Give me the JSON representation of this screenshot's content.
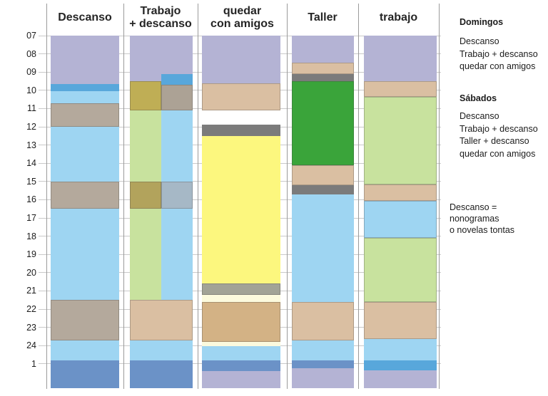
{
  "chart_data": {
    "type": "stacked-time-blocks-schedule",
    "title": "",
    "ylabel": "hour of day",
    "axis": {
      "tick_labels": [
        "07",
        "08",
        "09",
        "10",
        "11",
        "12",
        "13",
        "14",
        "15",
        "16",
        "17",
        "18",
        "19",
        "20",
        "21",
        "22",
        "23",
        "24",
        "1"
      ],
      "tick_hours": [
        7,
        8,
        9,
        10,
        11,
        12,
        13,
        14,
        15,
        16,
        17,
        18,
        19,
        20,
        21,
        22,
        23,
        24,
        25
      ],
      "grid": true
    },
    "palette": {
      "lavender": "#b4b3d4",
      "lightblue": "#9ed5f2",
      "medblue": "#58a7db",
      "darkblue": "#6b92c7",
      "greybrown": "#b4a99c",
      "greybrown2": "#aca295",
      "khaki": "#bfae55",
      "olive": "#b2a35c",
      "greyblue": "#a6b8c6",
      "green": "#c8e29e",
      "brightgreen": "#3aa43a",
      "tan": "#dabfa2",
      "darktan": "#d3b285",
      "yellow": "#fcf77e",
      "paleyellow": "#fcfadd",
      "grey": "#7b7b7b",
      "greygreen": "#a2a396"
    },
    "columns": [
      {
        "title": "Descanso",
        "blocks": [
          {
            "s": 7,
            "e": 9.65,
            "c": "lavender"
          },
          {
            "s": 9.65,
            "e": 10.05,
            "c": "medblue"
          },
          {
            "s": 10.05,
            "e": 10.7,
            "c": "lightblue"
          },
          {
            "s": 10.7,
            "e": 12,
            "c": "greybrown",
            "b": 1
          },
          {
            "s": 12,
            "e": 15,
            "c": "lightblue"
          },
          {
            "s": 15,
            "e": 16.5,
            "c": "greybrown",
            "b": 1
          },
          {
            "s": 16.5,
            "e": 21.5,
            "c": "lightblue"
          },
          {
            "s": 21.5,
            "e": 23.7,
            "c": "greybrown",
            "b": 1
          },
          {
            "s": 23.7,
            "e": 24.8,
            "c": "lightblue"
          },
          {
            "s": 24.8,
            "e": 26.35,
            "c": "darkblue"
          }
        ]
      },
      {
        "title": "Trabajo\n+ descanso",
        "blocks": [
          {
            "lane": "left",
            "s": 7,
            "e": 9.5,
            "c": "lavender"
          },
          {
            "lane": "left",
            "s": 9.5,
            "e": 11.1,
            "c": "khaki",
            "b": 1
          },
          {
            "lane": "left",
            "s": 11.1,
            "e": 15,
            "c": "green"
          },
          {
            "lane": "left",
            "s": 15,
            "e": 16.5,
            "c": "olive",
            "b": 1
          },
          {
            "lane": "left",
            "s": 16.5,
            "e": 21.5,
            "c": "green"
          },
          {
            "lane": "right",
            "s": 7,
            "e": 9.1,
            "c": "lavender"
          },
          {
            "lane": "right",
            "s": 9.1,
            "e": 9.7,
            "c": "medblue"
          },
          {
            "lane": "right",
            "s": 9.7,
            "e": 11.1,
            "c": "greybrown2",
            "b": 1
          },
          {
            "lane": "right",
            "s": 11.1,
            "e": 15,
            "c": "lightblue"
          },
          {
            "lane": "right",
            "s": 15,
            "e": 16.5,
            "c": "greyblue",
            "b": 1
          },
          {
            "lane": "right",
            "s": 16.5,
            "e": 21.5,
            "c": "lightblue"
          },
          {
            "s": 21.5,
            "e": 23.7,
            "c": "tan",
            "b": 1
          },
          {
            "s": 23.7,
            "e": 24.8,
            "c": "lightblue"
          },
          {
            "s": 24.8,
            "e": 26.35,
            "c": "darkblue"
          }
        ]
      },
      {
        "title": "quedar\ncon amigos",
        "blocks": [
          {
            "s": 7,
            "e": 9.6,
            "c": "lavender"
          },
          {
            "s": 9.6,
            "e": 11.1,
            "c": "tan",
            "b": 1
          },
          {
            "s": 11.9,
            "e": 12.5,
            "c": "grey"
          },
          {
            "s": 12.5,
            "e": 20.6,
            "c": "yellow"
          },
          {
            "s": 20.6,
            "e": 21.2,
            "c": "greygreen",
            "b": 1
          },
          {
            "s": 21.2,
            "e": 21.6,
            "c": "paleyellow"
          },
          {
            "s": 21.6,
            "e": 23.8,
            "c": "darktan",
            "b": 1
          },
          {
            "s": 23.8,
            "e": 24.05,
            "c": "paleyellow"
          },
          {
            "s": 24.05,
            "e": 24.8,
            "c": "lightblue"
          },
          {
            "s": 24.8,
            "e": 25.4,
            "c": "darkblue"
          },
          {
            "s": 25.4,
            "e": 26.35,
            "c": "lavender"
          }
        ]
      },
      {
        "title": "Taller",
        "blocks": [
          {
            "s": 7,
            "e": 8.5,
            "c": "lavender"
          },
          {
            "s": 8.5,
            "e": 9.1,
            "c": "tan",
            "b": 1
          },
          {
            "s": 9.1,
            "e": 9.5,
            "c": "grey"
          },
          {
            "s": 9.5,
            "e": 14.1,
            "c": "brightgreen",
            "b": 1
          },
          {
            "s": 14.1,
            "e": 15.2,
            "c": "tan",
            "b": 1
          },
          {
            "s": 15.2,
            "e": 15.7,
            "c": "grey"
          },
          {
            "s": 15.7,
            "e": 21.6,
            "c": "lightblue"
          },
          {
            "s": 21.6,
            "e": 23.7,
            "c": "tan",
            "b": 1
          },
          {
            "s": 23.7,
            "e": 24.8,
            "c": "lightblue"
          },
          {
            "s": 24.8,
            "e": 25.25,
            "c": "darkblue"
          },
          {
            "s": 25.25,
            "e": 26.35,
            "c": "lavender"
          }
        ]
      },
      {
        "title": "trabajo",
        "blocks": [
          {
            "s": 7,
            "e": 9.5,
            "c": "lavender"
          },
          {
            "s": 9.5,
            "e": 10.35,
            "c": "tan",
            "b": 1
          },
          {
            "s": 10.35,
            "e": 15.15,
            "c": "green",
            "b": 1
          },
          {
            "s": 15.15,
            "e": 16.05,
            "c": "tan",
            "b": 1
          },
          {
            "s": 16.05,
            "e": 18.1,
            "c": "lightblue",
            "b": 1
          },
          {
            "s": 18.1,
            "e": 21.6,
            "c": "green",
            "b": 1
          },
          {
            "s": 21.6,
            "e": 23.65,
            "c": "tan",
            "b": 1
          },
          {
            "s": 23.65,
            "e": 24.8,
            "c": "lightblue"
          },
          {
            "s": 24.8,
            "e": 25.35,
            "c": "medblue"
          },
          {
            "s": 25.35,
            "e": 26.35,
            "c": "lavender"
          }
        ]
      }
    ]
  },
  "legend": {
    "sundays": {
      "heading": "Domingos",
      "items": [
        "Descanso",
        "Trabajo + descanso",
        "quedar con amigos"
      ]
    },
    "saturdays": {
      "heading": "Sábados",
      "items": [
        "Descanso",
        "Trabajo + descanso",
        "Taller + descanso",
        "quedar con amigos"
      ]
    },
    "note_lines": [
      "Descanso = nonogramas",
      "o novelas tontas"
    ]
  }
}
